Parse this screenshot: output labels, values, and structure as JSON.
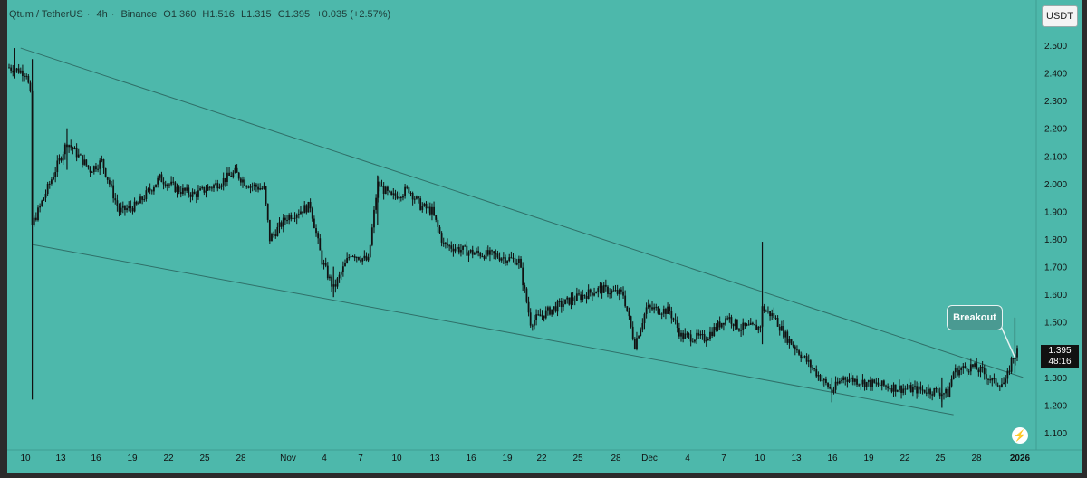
{
  "header": {
    "symbol": "Qtum / TetherUS",
    "interval": "4h",
    "exchange": "Binance",
    "open": "O1.360",
    "high": "H1.516",
    "low": "L1.315",
    "close": "C1.395",
    "change": "+0.035 (+2.57%)"
  },
  "currency_button": "USDT",
  "price_tag": {
    "price": "1.395",
    "countdown": "48:16"
  },
  "annotation": "Breakout",
  "colors": {
    "background": "#4db8ab",
    "candle": "#111111",
    "trendline": "#2f6f68",
    "axis_text": "#111111"
  },
  "chart_data": {
    "type": "candlestick",
    "title": "",
    "xlabel": "",
    "ylabel": "",
    "ylim": [
      1.05,
      2.55
    ],
    "y_ticks": [
      "2.500",
      "2.400",
      "2.300",
      "2.200",
      "2.100",
      "2.000",
      "1.900",
      "1.800",
      "1.700",
      "1.600",
      "1.500",
      "1.400",
      "1.300",
      "1.200",
      "1.100"
    ],
    "x_ticks": [
      "10",
      "13",
      "16",
      "19",
      "22",
      "25",
      "28",
      "Nov",
      "4",
      "7",
      "10",
      "13",
      "16",
      "19",
      "22",
      "25",
      "28",
      "Dec",
      "4",
      "7",
      "10",
      "13",
      "16",
      "19",
      "22",
      "25",
      "28",
      "2026"
    ],
    "path_points": [
      {
        "day": 0,
        "price": 2.42
      },
      {
        "day": 1.5,
        "price": 2.4
      },
      {
        "day": 1.9,
        "price": 2.3
      },
      {
        "day": 2.0,
        "price": 1.85
      },
      {
        "day": 3,
        "price": 1.95
      },
      {
        "day": 5,
        "price": 2.15
      },
      {
        "day": 7,
        "price": 2.05
      },
      {
        "day": 8,
        "price": 2.08
      },
      {
        "day": 9.5,
        "price": 1.9
      },
      {
        "day": 11,
        "price": 1.92
      },
      {
        "day": 13,
        "price": 2.02
      },
      {
        "day": 14.5,
        "price": 1.98
      },
      {
        "day": 16,
        "price": 1.96
      },
      {
        "day": 18,
        "price": 2.0
      },
      {
        "day": 19.5,
        "price": 2.04
      },
      {
        "day": 20.5,
        "price": 2.0
      },
      {
        "day": 22,
        "price": 1.98
      },
      {
        "day": 22.5,
        "price": 1.8
      },
      {
        "day": 24,
        "price": 1.88
      },
      {
        "day": 26,
        "price": 1.92
      },
      {
        "day": 27,
        "price": 1.72
      },
      {
        "day": 28,
        "price": 1.62
      },
      {
        "day": 29.5,
        "price": 1.75
      },
      {
        "day": 31,
        "price": 1.72
      },
      {
        "day": 31.8,
        "price": 2.0
      },
      {
        "day": 33,
        "price": 1.95
      },
      {
        "day": 34.5,
        "price": 1.98
      },
      {
        "day": 35.5,
        "price": 1.92
      },
      {
        "day": 36.5,
        "price": 1.9
      },
      {
        "day": 37.5,
        "price": 1.78
      },
      {
        "day": 40,
        "price": 1.75
      },
      {
        "day": 42,
        "price": 1.74
      },
      {
        "day": 44,
        "price": 1.72
      },
      {
        "day": 45,
        "price": 1.5
      },
      {
        "day": 47,
        "price": 1.55
      },
      {
        "day": 48.5,
        "price": 1.58
      },
      {
        "day": 51,
        "price": 1.62
      },
      {
        "day": 53,
        "price": 1.6
      },
      {
        "day": 54,
        "price": 1.42
      },
      {
        "day": 55,
        "price": 1.55
      },
      {
        "day": 57,
        "price": 1.54
      },
      {
        "day": 58,
        "price": 1.45
      },
      {
        "day": 60,
        "price": 1.44
      },
      {
        "day": 62,
        "price": 1.52
      },
      {
        "day": 63,
        "price": 1.48
      },
      {
        "day": 64.8,
        "price": 1.48
      },
      {
        "day": 65,
        "price": 1.55
      },
      {
        "day": 66,
        "price": 1.52
      },
      {
        "day": 67,
        "price": 1.45
      },
      {
        "day": 69,
        "price": 1.35
      },
      {
        "day": 71,
        "price": 1.25
      },
      {
        "day": 72,
        "price": 1.3
      },
      {
        "day": 74,
        "price": 1.28
      },
      {
        "day": 77,
        "price": 1.26
      },
      {
        "day": 80,
        "price": 1.25
      },
      {
        "day": 81,
        "price": 1.24
      },
      {
        "day": 81.5,
        "price": 1.32
      },
      {
        "day": 83,
        "price": 1.34
      },
      {
        "day": 84,
        "price": 1.32
      },
      {
        "day": 85,
        "price": 1.28
      },
      {
        "day": 86,
        "price": 1.28
      },
      {
        "day": 86.5,
        "price": 1.36
      },
      {
        "day": 87,
        "price": 1.395
      }
    ],
    "spikes": [
      {
        "day": 2.0,
        "high": 2.45,
        "low": 1.22
      },
      {
        "day": 0.5,
        "high": 2.49,
        "low": 2.38
      },
      {
        "day": 5.0,
        "high": 2.2,
        "low": 2.05
      },
      {
        "day": 28.0,
        "high": 1.7,
        "low": 1.59
      },
      {
        "day": 31.8,
        "high": 2.03,
        "low": 1.85
      },
      {
        "day": 65.0,
        "high": 1.79,
        "low": 1.42
      },
      {
        "day": 71.0,
        "high": 1.3,
        "low": 1.21
      },
      {
        "day": 80.5,
        "high": 1.3,
        "low": 1.19
      },
      {
        "day": 86.8,
        "high": 1.516,
        "low": 1.315
      }
    ],
    "trendlines": [
      {
        "name": "upper",
        "from": {
          "day": 1,
          "price": 2.49
        },
        "to": {
          "day": 87.5,
          "price": 1.3
        }
      },
      {
        "name": "lower",
        "from": {
          "day": 2,
          "price": 1.78
        },
        "to": {
          "day": 81.5,
          "price": 1.165
        }
      }
    ],
    "last_price": 1.395
  }
}
